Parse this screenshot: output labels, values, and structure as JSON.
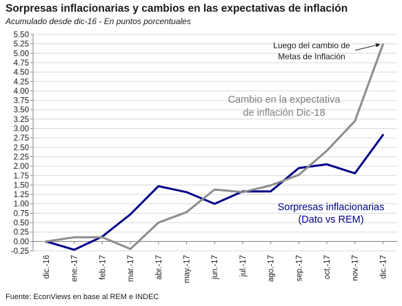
{
  "title": "Sorpresas inflacionarias y cambios en las expectativas de inflación",
  "subtitle": "Acumulado desde dic-16 - En puntos porcentuales",
  "source": "Fuente: EconViews en base al REM e INDEC",
  "chart_data": {
    "type": "line",
    "categories": [
      "dic.-16",
      "ene.-17",
      "feb.-17",
      "mar.-17",
      "abr.-17",
      "may.-17",
      "jun.-17",
      "jul.-17",
      "ago.-17",
      "sep.-17",
      "oct.-17",
      "nov.-17",
      "dic.-17"
    ],
    "ylim": [
      -0.25,
      5.5
    ],
    "ytick_step": 0.25,
    "ytick_labels": [
      "-0.25",
      "0.00",
      "0.25",
      "0.50",
      "0.75",
      "1.00",
      "1.25",
      "1.50",
      "1.75",
      "2.00",
      "2.25",
      "2.50",
      "2.75",
      "3.00",
      "3.25",
      "3.50",
      "3.75",
      "4.00",
      "4.25",
      "4.50",
      "4.75",
      "5.00",
      "5.25",
      "5.50"
    ],
    "grid": true,
    "series": [
      {
        "key": "sorpresas",
        "color": "#00008b",
        "values": [
          0.0,
          -0.22,
          0.13,
          0.72,
          1.47,
          1.31,
          1.0,
          1.33,
          1.33,
          1.95,
          2.05,
          1.81,
          2.83
        ]
      },
      {
        "key": "expectativa",
        "color": "#8c8c8c",
        "values": [
          0.0,
          0.11,
          0.11,
          -0.2,
          0.5,
          0.78,
          1.38,
          1.31,
          1.49,
          1.77,
          2.41,
          3.2,
          5.24
        ]
      }
    ],
    "annotations": [
      {
        "key": "sorpresas_label",
        "lines": [
          "Sorpresas inflacionarias",
          "(Dato vs REM)"
        ],
        "color": "#00008b"
      },
      {
        "key": "expectativa_label",
        "lines": [
          "Cambio en la expectativa",
          "de inflación Dic-18"
        ],
        "color": "#7f7f7f"
      },
      {
        "key": "metas_note",
        "lines": [
          "Luego del cambio de",
          "Metas de Inflación"
        ],
        "color": "#1a1a1a"
      }
    ]
  }
}
